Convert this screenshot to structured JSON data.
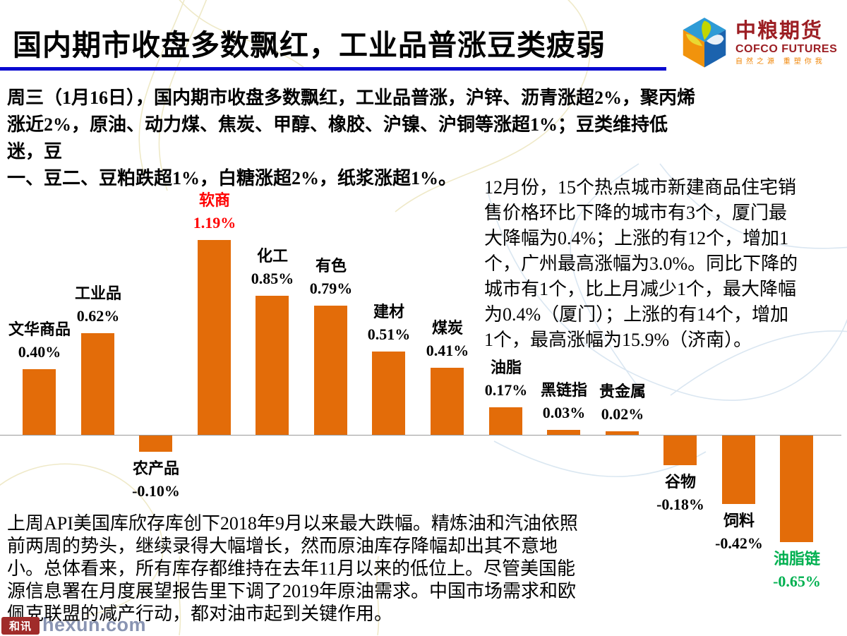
{
  "slide": {
    "title": "国内期市收盘多数飘红，工业品普涨豆类疲弱",
    "intro_lines": [
      "周三（1月16日），国内期市收盘多数飘红，工业品普涨，沪锌、沥青涨超2%，聚丙烯",
      "涨近2%，原油、动力煤、焦炭、甲醇、橡胶、沪镍、沪铜等涨超1%；豆类维持低迷，豆",
      "一、豆二、豆粕跌超1%，白糖涨超2%，纸浆涨超1%。"
    ],
    "housing_lines": [
      "12月份，15个热点城市新建商品住宅销",
      "售价格环比下降的城市有3个，厦门最",
      "大降幅为0.4%；上涨的有12个，增加1",
      "个，广州最高涨幅为3.0%。同比下降的",
      "城市有1个，比上月减少1个，最大降幅",
      "为0.4%（厦门）；上涨的有14个，增加",
      "1个，最高涨幅为15.9%（济南）。"
    ],
    "oil_lines": [
      "上周API美国库欣存库创下2018年9月以来最大跌幅。精炼油和汽油依照",
      "前两周的势头，继续录得大幅增长，然而原油库存降幅却出其不意地",
      "小。总体看来，所有库存都维持在去年11月以来的低位上。尽管美国能",
      "源信息署在月度展望报告里下调了2019年原油需求。中国市场需求和欧",
      "佩克联盟的减产行动，都对油市起到关键作用。"
    ]
  },
  "logo": {
    "name_cn": "中粮期货",
    "name_en": "COFCO FUTURES",
    "tagline": "自然之源 重塑你我"
  },
  "watermark": {
    "logo_text": "和讯",
    "site": "hexun.com"
  },
  "colors": {
    "bar": "#E36C09",
    "title_rule": "#0A0AD0",
    "highlight_positive": "#FF0000",
    "highlight_negative": "#00B050",
    "logo_red": "#9C1E23",
    "logo_orange": "#F08300"
  },
  "chart_data": {
    "type": "bar",
    "title": "",
    "xlabel": "",
    "ylabel": "",
    "unit": "%",
    "ylim": [
      -0.8,
      1.3
    ],
    "grid": false,
    "legend": false,
    "baseline": 0,
    "bar_color": "#E36C09",
    "categories": [
      "文华商品",
      "工业品",
      "农产品",
      "软商",
      "化工",
      "有色",
      "建材",
      "煤炭",
      "油脂",
      "黑链指",
      "贵金属",
      "谷物",
      "饲料",
      "油脂链"
    ],
    "values": [
      0.4,
      0.62,
      -0.1,
      1.19,
      0.85,
      0.79,
      0.51,
      0.41,
      0.17,
      0.03,
      0.02,
      -0.18,
      -0.42,
      -0.65
    ],
    "labels": [
      "0.40%",
      "0.62%",
      "-0.10%",
      "1.19%",
      "0.85%",
      "0.79%",
      "0.51%",
      "0.41%",
      "0.17%",
      "0.03%",
      "0.02%",
      "-0.18%",
      "-0.42%",
      "-0.65%"
    ],
    "label_colors": [
      "#000000",
      "#000000",
      "#000000",
      "#FF0000",
      "#000000",
      "#000000",
      "#000000",
      "#000000",
      "#000000",
      "#000000",
      "#000000",
      "#000000",
      "#000000",
      "#00B050"
    ]
  }
}
